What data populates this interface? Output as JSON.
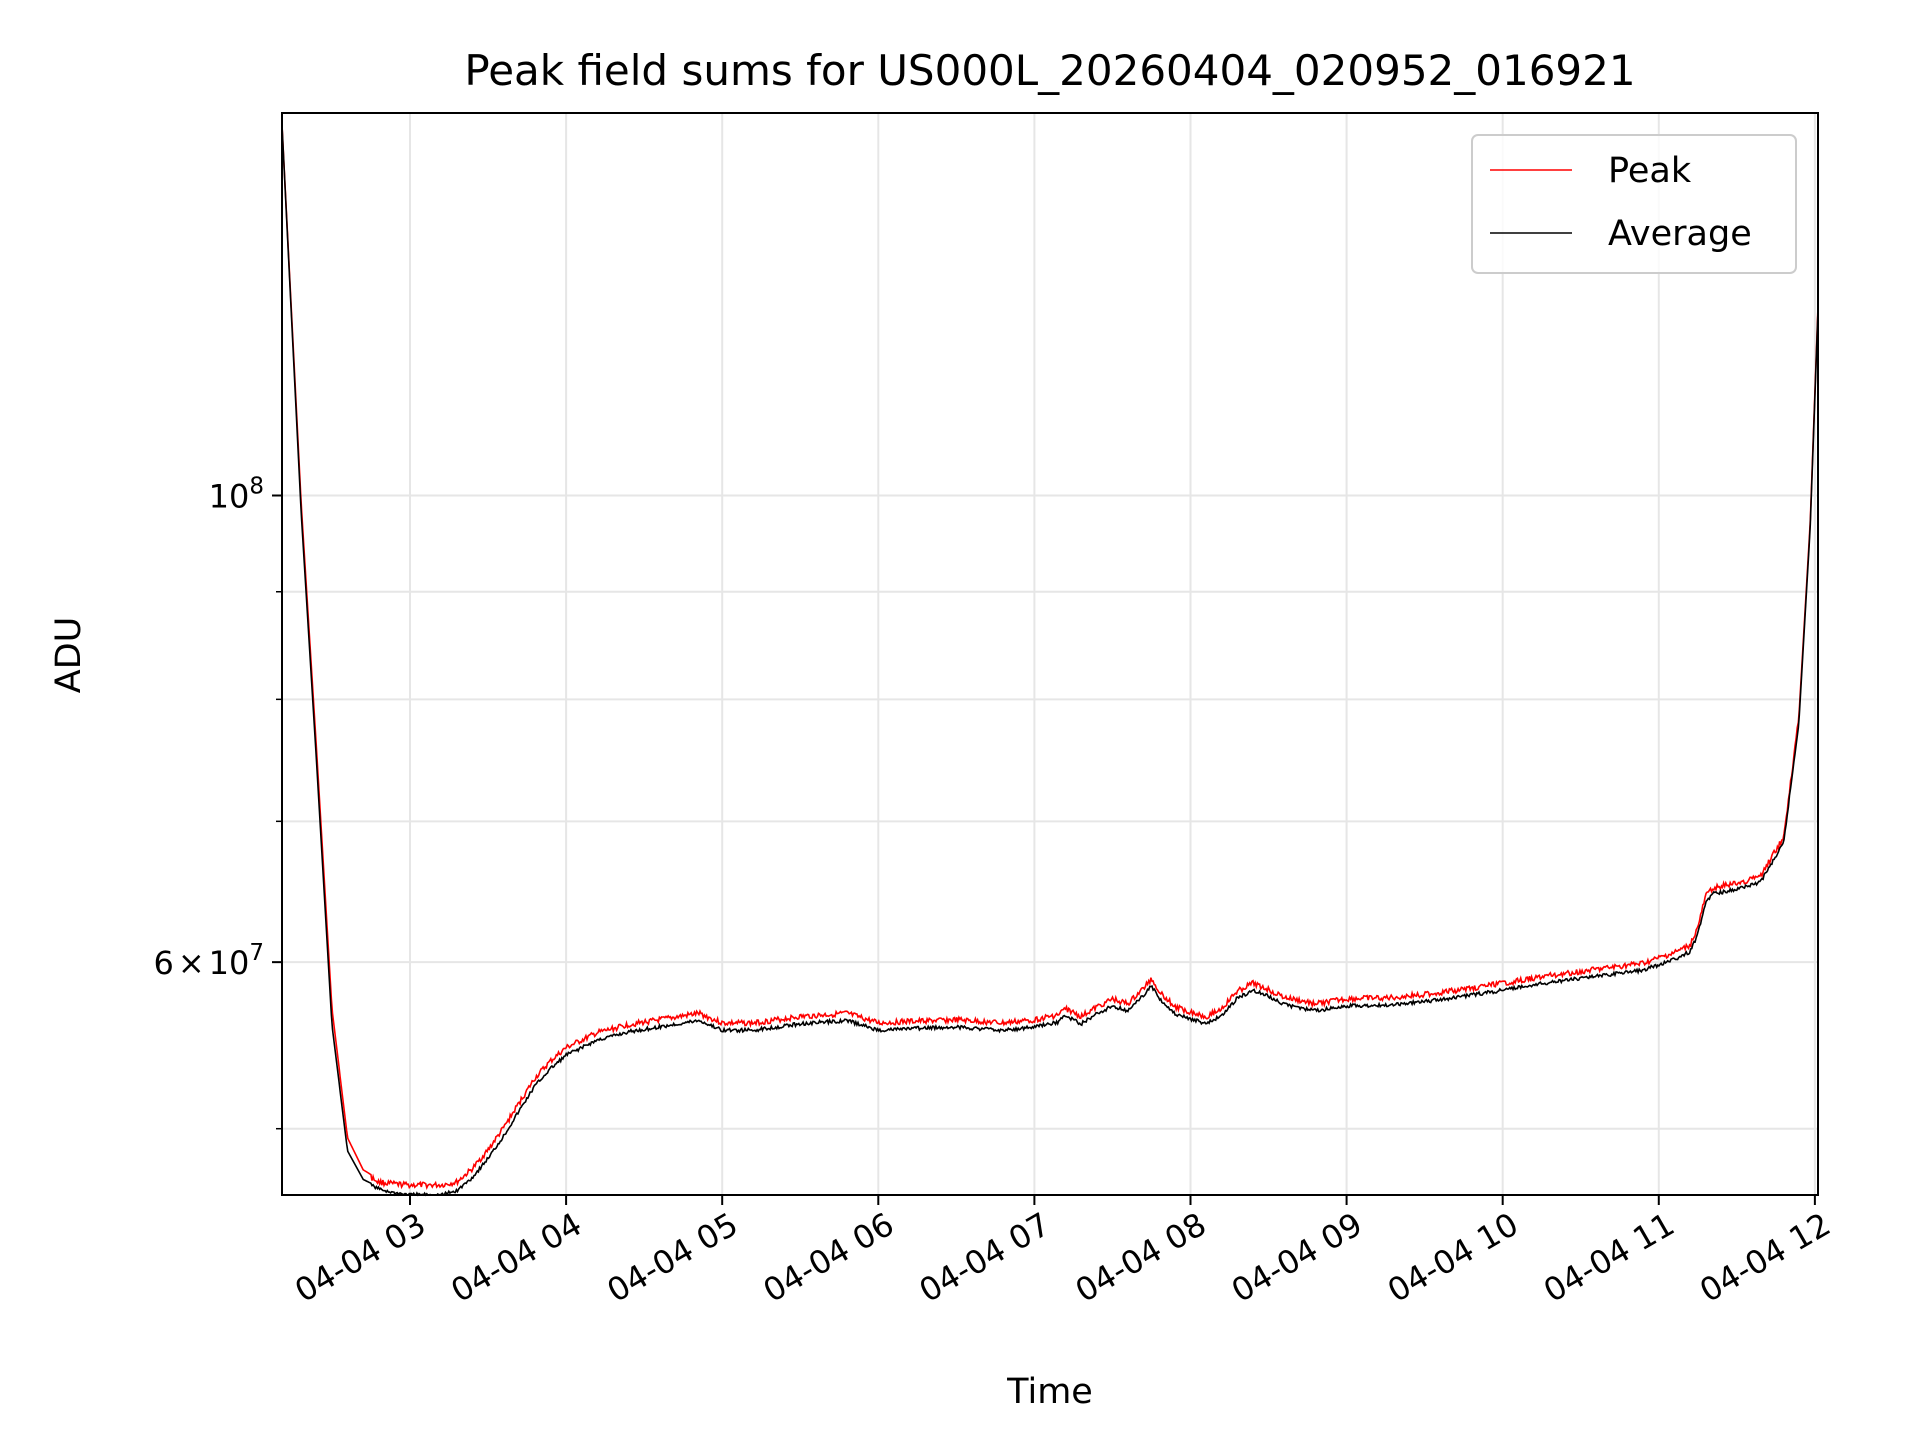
{
  "chart_data": {
    "type": "line",
    "title": "Peak field sums for US000L_20260404_020952_016921",
    "xlabel": "Time",
    "ylabel": "ADU",
    "xlim": [
      2.18,
      12.02
    ],
    "ylim": [
      46500000,
      152000000
    ],
    "yscale": "log",
    "grid": true,
    "legend_position": "top-right",
    "x_ticks": [
      {
        "value": 3,
        "label": "04-04 03"
      },
      {
        "value": 4,
        "label": "04-04 04"
      },
      {
        "value": 5,
        "label": "04-04 05"
      },
      {
        "value": 6,
        "label": "04-04 06"
      },
      {
        "value": 7,
        "label": "04-04 07"
      },
      {
        "value": 8,
        "label": "04-04 08"
      },
      {
        "value": 9,
        "label": "04-04 09"
      },
      {
        "value": 10,
        "label": "04-04 10"
      },
      {
        "value": 11,
        "label": "04-04 11"
      },
      {
        "value": 12,
        "label": "04-04 12"
      }
    ],
    "y_major_ticks": [
      {
        "value": 100000000,
        "base": "10",
        "exp": "8"
      },
      {
        "value": 60000000,
        "mant": "6",
        "times": "×",
        "base": "10",
        "exp": "7"
      }
    ],
    "y_minor_ticks": [
      50000000,
      70000000,
      80000000,
      90000000
    ],
    "series": [
      {
        "name": "Peak",
        "color": "#ff0000",
        "x": [
          2.18,
          2.3,
          2.4,
          2.5,
          2.6,
          2.7,
          2.8,
          2.9,
          3.0,
          3.1,
          3.2,
          3.3,
          3.4,
          3.5,
          3.6,
          3.7,
          3.8,
          3.9,
          4.0,
          4.2,
          4.4,
          4.6,
          4.85,
          5.0,
          5.2,
          5.5,
          5.8,
          6.0,
          6.2,
          6.5,
          6.8,
          7.0,
          7.15,
          7.2,
          7.3,
          7.4,
          7.5,
          7.6,
          7.7,
          7.75,
          7.8,
          7.9,
          8.0,
          8.1,
          8.2,
          8.3,
          8.4,
          8.5,
          8.6,
          8.8,
          9.0,
          9.3,
          9.6,
          10.0,
          10.3,
          10.6,
          10.9,
          11.1,
          11.2,
          11.25,
          11.3,
          11.35,
          11.5,
          11.65,
          11.8,
          11.9,
          11.97,
          12.02
        ],
        "y": [
          150000000,
          100000000,
          76000000,
          57000000,
          49500000,
          47800000,
          47300000,
          47200000,
          47150000,
          47150000,
          47150000,
          47300000,
          48000000,
          49000000,
          50200000,
          51600000,
          53000000,
          54000000,
          54800000,
          55700000,
          56200000,
          56500000,
          56900000,
          56300000,
          56300000,
          56700000,
          56900000,
          56300000,
          56400000,
          56500000,
          56300000,
          56500000,
          56800000,
          57200000,
          56700000,
          57300000,
          57800000,
          57500000,
          58500000,
          59100000,
          58300000,
          57300000,
          57000000,
          56700000,
          57200000,
          58300000,
          58800000,
          58400000,
          57900000,
          57500000,
          57800000,
          57900000,
          58200000,
          58800000,
          59300000,
          59700000,
          60100000,
          60800000,
          61300000,
          62500000,
          64700000,
          65300000,
          65600000,
          66100000,
          69000000,
          79000000,
          97000000,
          123000000
        ]
      },
      {
        "name": "Average",
        "color": "#000000",
        "x": [
          2.18,
          2.3,
          2.4,
          2.5,
          2.6,
          2.7,
          2.8,
          2.9,
          3.0,
          3.1,
          3.2,
          3.3,
          3.4,
          3.5,
          3.6,
          3.7,
          3.8,
          3.9,
          4.0,
          4.2,
          4.4,
          4.6,
          4.85,
          5.0,
          5.2,
          5.5,
          5.8,
          6.0,
          6.2,
          6.5,
          6.8,
          7.0,
          7.15,
          7.2,
          7.3,
          7.4,
          7.5,
          7.6,
          7.7,
          7.75,
          7.8,
          7.9,
          8.0,
          8.1,
          8.2,
          8.3,
          8.4,
          8.5,
          8.6,
          8.8,
          9.0,
          9.3,
          9.6,
          10.0,
          10.3,
          10.6,
          10.9,
          11.1,
          11.2,
          11.25,
          11.3,
          11.35,
          11.5,
          11.65,
          11.8,
          11.9,
          11.97,
          12.02
        ],
        "y": [
          150000000,
          99000000,
          75000000,
          56000000,
          48800000,
          47300000,
          46900000,
          46700000,
          46600000,
          46600000,
          46600000,
          46800000,
          47500000,
          48500000,
          49700000,
          51100000,
          52500000,
          53500000,
          54300000,
          55200000,
          55700000,
          56000000,
          56400000,
          55800000,
          55800000,
          56200000,
          56400000,
          55800000,
          55900000,
          56000000,
          55800000,
          56000000,
          56300000,
          56700000,
          56200000,
          56800000,
          57300000,
          57000000,
          58000000,
          58600000,
          57800000,
          56800000,
          56500000,
          56200000,
          56700000,
          57800000,
          58300000,
          57900000,
          57400000,
          57000000,
          57300000,
          57400000,
          57700000,
          58300000,
          58800000,
          59200000,
          59600000,
          60300000,
          60800000,
          62000000,
          64200000,
          64800000,
          65100000,
          65600000,
          68500000,
          78500000,
          96500000,
          122500000
        ]
      }
    ]
  }
}
